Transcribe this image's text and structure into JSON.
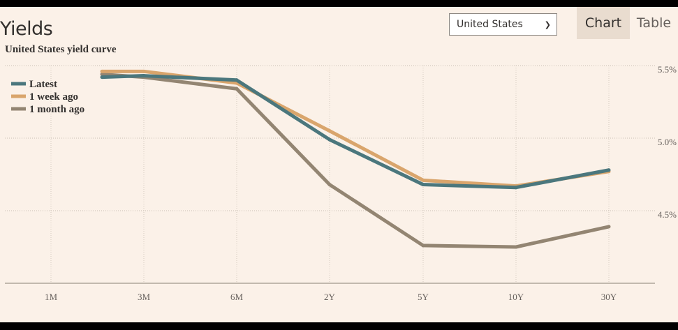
{
  "header": {
    "title": "Yields",
    "country_select": {
      "selected": "United States"
    },
    "tabs": [
      {
        "label": "Chart",
        "active": true
      },
      {
        "label": "Table",
        "active": false
      }
    ]
  },
  "chart_data": {
    "type": "line",
    "title": "United States yield curve",
    "categories": [
      "1M",
      "3M",
      "6M",
      "2Y",
      "5Y",
      "10Y",
      "30Y"
    ],
    "ylim": [
      4.0,
      5.5
    ],
    "y_ticks": [
      "4.5%",
      "5.0%",
      "5.5%"
    ],
    "grid": true,
    "legend_position": "top-left",
    "series": [
      {
        "name": "Latest",
        "color": "#4b777d",
        "values": [
          5.42,
          5.43,
          5.4,
          4.99,
          4.68,
          4.66,
          4.78
        ]
      },
      {
        "name": "1 week ago",
        "color": "#d9a56c",
        "values": [
          5.46,
          5.46,
          5.38,
          5.05,
          4.71,
          4.67,
          4.77
        ]
      },
      {
        "name": "1 month ago",
        "color": "#938572",
        "values": [
          5.44,
          5.42,
          5.34,
          4.68,
          4.26,
          4.25,
          4.39
        ]
      }
    ]
  }
}
